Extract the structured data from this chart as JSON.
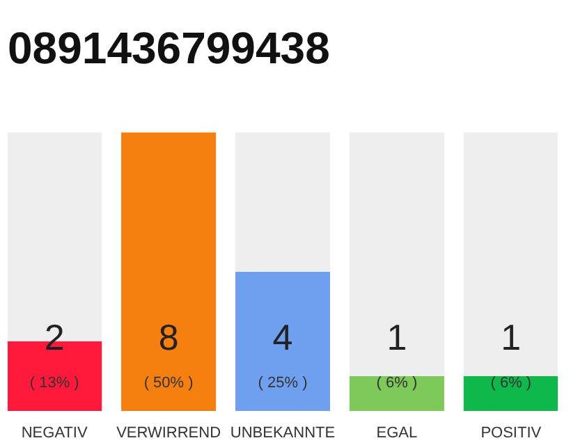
{
  "chart_data": {
    "type": "bar",
    "title": "0891436799438",
    "stacked": true,
    "categories": [
      "NEGATIV",
      "VERWIRREND",
      "UNBEKANNTE",
      "EGAL",
      "POSITIV"
    ],
    "series": [
      {
        "colors": [
          "#ff1a3c",
          "#f57f0f",
          "#6ea0ef",
          "#7dc95a",
          "#0fb84a"
        ],
        "values": [
          2,
          8,
          4,
          1,
          1
        ],
        "value_labels": [
          "2",
          "8",
          "4",
          "1",
          "1"
        ]
      },
      {
        "color": "#eeeeee",
        "values": [
          6,
          0,
          4,
          7,
          7
        ]
      }
    ],
    "annotations": [
      "( 13% )",
      "( 50% )",
      "( 25% )",
      "( 6% )",
      "( 6% )"
    ]
  }
}
